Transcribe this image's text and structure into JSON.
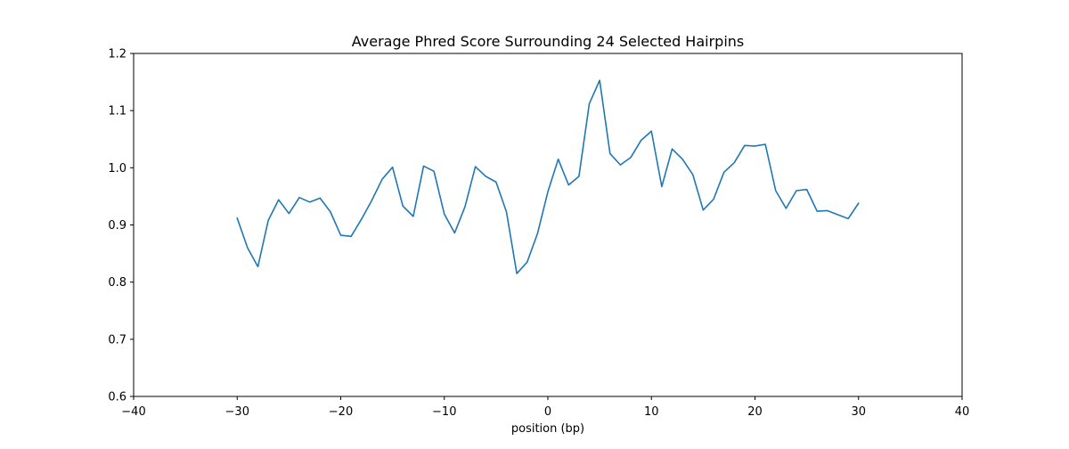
{
  "chart_data": {
    "type": "line",
    "title": "Average Phred Score Surrounding 24 Selected Hairpins",
    "xlabel": "position (bp)",
    "ylabel": "",
    "xlim": [
      -40,
      40
    ],
    "ylim": [
      0.6,
      1.2
    ],
    "xticks": [
      -40,
      -30,
      -20,
      -10,
      0,
      10,
      20,
      30,
      40
    ],
    "yticks": [
      0.6,
      0.7,
      0.8,
      0.9,
      1.0,
      1.1,
      1.2
    ],
    "xtick_labels": [
      "−40",
      "−30",
      "−20",
      "−10",
      "0",
      "10",
      "20",
      "30",
      "40"
    ],
    "ytick_labels": [
      "0.6",
      "0.7",
      "0.8",
      "0.9",
      "1.0",
      "1.1",
      "1.2"
    ],
    "grid": false,
    "legend": "none",
    "series": [
      {
        "color": "#1f77b4",
        "x": [
          -30,
          -29,
          -28,
          -27,
          -26,
          -25,
          -24,
          -23,
          -22,
          -21,
          -20,
          -19,
          -18,
          -17,
          -16,
          -15,
          -14,
          -13,
          -12,
          -11,
          -10,
          -9,
          -8,
          -7,
          -6,
          -5,
          -4,
          -3,
          -2,
          -1,
          0,
          1,
          2,
          3,
          4,
          5,
          6,
          7,
          8,
          9,
          10,
          11,
          12,
          13,
          14,
          15,
          16,
          17,
          18,
          19,
          20,
          21,
          22,
          23,
          24,
          25,
          26,
          27,
          28,
          29,
          30
        ],
        "y": [
          0.912,
          0.86,
          0.827,
          0.908,
          0.944,
          0.92,
          0.948,
          0.94,
          0.947,
          0.923,
          0.882,
          0.88,
          0.91,
          0.943,
          0.98,
          1.001,
          0.933,
          0.915,
          1.003,
          0.994,
          0.919,
          0.886,
          0.932,
          1.002,
          0.985,
          0.975,
          0.923,
          0.815,
          0.835,
          0.885,
          0.958,
          1.015,
          0.97,
          0.985,
          1.112,
          1.153,
          1.025,
          1.005,
          1.018,
          1.048,
          1.064,
          0.967,
          1.033,
          1.015,
          0.988,
          0.926,
          0.945,
          0.992,
          1.009,
          1.039,
          1.038,
          1.041,
          0.96,
          0.929,
          0.96,
          0.962,
          0.924,
          0.925,
          0.918,
          0.911,
          0.938
        ]
      }
    ]
  }
}
